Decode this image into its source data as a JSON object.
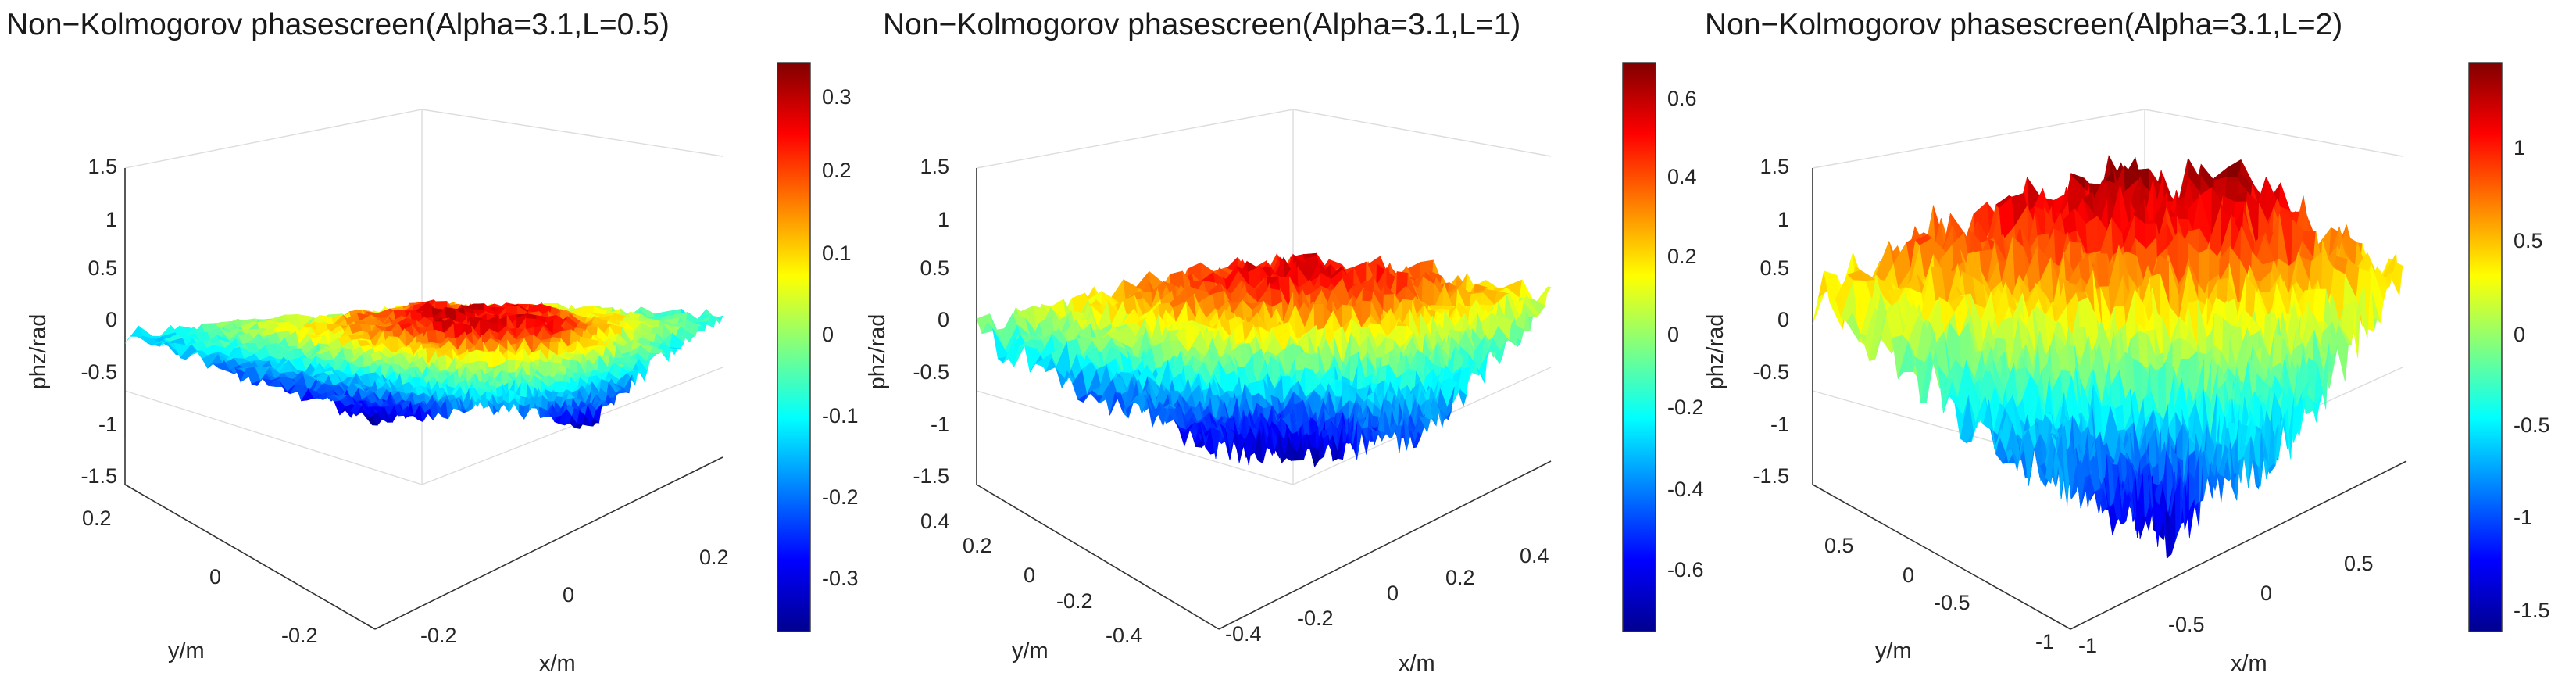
{
  "figure": {
    "colormap": "jet",
    "colors": {
      "jet": [
        "#00008f",
        "#0000ff",
        "#0080ff",
        "#00ffff",
        "#80ff80",
        "#ffff00",
        "#ff8000",
        "#ff0000",
        "#800000"
      ]
    },
    "charts": [
      {
        "title": "Non−Kolmogorov phasescreen(Alpha=3.1,L=0.5)",
        "xlabel": "x/m",
        "ylabel": "y/m",
        "zlabel": "phz/rad",
        "xticks": [
          "-0.2",
          "0",
          "0.2"
        ],
        "yticks": [
          "-0.2",
          "0",
          "0.2"
        ],
        "zticks": [
          "-1.5",
          "-1",
          "-0.5",
          "0",
          "0.5",
          "1",
          "1.5"
        ],
        "cbar_ticks": [
          "-0.3",
          "-0.2",
          "-0.1",
          "0",
          "0.1",
          "0.2",
          "0.3"
        ]
      },
      {
        "title": "Non−Kolmogorov phasescreen(Alpha=3.1,L=1)",
        "xlabel": "x/m",
        "ylabel": "y/m",
        "zlabel": "phz/rad",
        "xticks": [
          "-0.4",
          "-0.2",
          "0",
          "0.2",
          "0.4"
        ],
        "yticks": [
          "-0.4",
          "-0.2",
          "0",
          "0.2",
          "0.4"
        ],
        "zticks": [
          "-1.5",
          "-1",
          "-0.5",
          "0",
          "0.5",
          "1",
          "1.5"
        ],
        "cbar_ticks": [
          "-0.6",
          "-0.4",
          "-0.2",
          "0",
          "0.2",
          "0.4",
          "0.6"
        ]
      },
      {
        "title": "Non−Kolmogorov phasescreen(Alpha=3.1,L=2)",
        "xlabel": "x/m",
        "ylabel": "y/m",
        "zlabel": "phz/rad",
        "xticks": [
          "-1",
          "-0.5",
          "0",
          "0.5"
        ],
        "yticks": [
          "-1",
          "-0.5",
          "0",
          "0.5"
        ],
        "zticks": [
          "-1.5",
          "-1",
          "-0.5",
          "0",
          "0.5",
          "1",
          "1.5"
        ],
        "cbar_ticks": [
          "-1.5",
          "-1",
          "-0.5",
          "0",
          "0.5",
          "1"
        ]
      }
    ]
  },
  "chart_data": [
    {
      "type": "surface",
      "title": "Non−Kolmogorov phasescreen(Alpha=3.1,L=0.5)",
      "alpha": 3.1,
      "L": 0.5,
      "x_range": [
        -0.25,
        0.25
      ],
      "y_range": [
        -0.25,
        0.25
      ],
      "zlim": [
        -1.5,
        1.5
      ],
      "x_ticks": [
        -0.2,
        0,
        0.2
      ],
      "y_ticks": [
        -0.2,
        0,
        0.2
      ],
      "z_ticks": [
        -1.5,
        -1,
        -0.5,
        0,
        0.5,
        1,
        1.5
      ],
      "clim": [
        -0.35,
        0.35
      ],
      "cbar_ticks": [
        -0.3,
        -0.2,
        -0.1,
        0,
        0.1,
        0.2,
        0.3
      ],
      "xlabel": "x/m",
      "ylabel": "y/m",
      "zlabel": "phz/rad",
      "colormap": "jet",
      "grid": true,
      "surface_amplitude": 0.35,
      "surface_samples": [
        [
          -0.1,
          -0.02,
          0.05,
          0.0,
          -0.08
        ],
        [
          -0.15,
          0.1,
          0.28,
          0.2,
          -0.05
        ],
        [
          -0.2,
          0.05,
          0.3,
          0.25,
          -0.1
        ],
        [
          -0.25,
          -0.12,
          0.02,
          0.0,
          -0.18
        ],
        [
          -0.3,
          -0.25,
          -0.15,
          -0.2,
          -0.28
        ]
      ]
    },
    {
      "type": "surface",
      "title": "Non−Kolmogorov phasescreen(Alpha=3.1,L=1)",
      "alpha": 3.1,
      "L": 1,
      "x_range": [
        -0.5,
        0.5
      ],
      "y_range": [
        -0.5,
        0.5
      ],
      "zlim": [
        -1.5,
        1.5
      ],
      "x_ticks": [
        -0.4,
        -0.2,
        0,
        0.2,
        0.4
      ],
      "y_ticks": [
        -0.4,
        -0.2,
        0,
        0.2,
        0.4
      ],
      "z_ticks": [
        -1.5,
        -1,
        -0.5,
        0,
        0.5,
        1,
        1.5
      ],
      "clim": [
        -0.7,
        0.7
      ],
      "cbar_ticks": [
        -0.6,
        -0.4,
        -0.2,
        0,
        0.2,
        0.4,
        0.6
      ],
      "xlabel": "x/m",
      "ylabel": "y/m",
      "zlabel": "phz/rad",
      "colormap": "jet",
      "grid": true,
      "surface_amplitude": 0.7,
      "surface_samples": [
        [
          -0.1,
          0.3,
          0.5,
          0.4,
          0.1
        ],
        [
          -0.2,
          0.25,
          0.55,
          0.45,
          0.0
        ],
        [
          -0.35,
          0.05,
          0.2,
          0.15,
          -0.15
        ],
        [
          -0.45,
          -0.3,
          -0.4,
          -0.25,
          -0.3
        ],
        [
          -0.55,
          -0.6,
          -0.65,
          -0.45,
          -0.4
        ]
      ]
    },
    {
      "type": "surface",
      "title": "Non−Kolmogorov phasescreen(Alpha=3.1,L=2)",
      "alpha": 3.1,
      "L": 2,
      "x_range": [
        -1,
        1
      ],
      "y_range": [
        -1,
        1
      ],
      "zlim": [
        -1.5,
        1.5
      ],
      "x_ticks": [
        -1,
        -0.5,
        0,
        0.5
      ],
      "y_ticks": [
        -1,
        -0.5,
        0,
        0.5
      ],
      "z_ticks": [
        -1.5,
        -1,
        -0.5,
        0,
        0.5,
        1,
        1.5
      ],
      "clim": [
        -1.6,
        1.45
      ],
      "cbar_ticks": [
        -1.5,
        -1,
        -0.5,
        0,
        0.5,
        1
      ],
      "xlabel": "x/m",
      "ylabel": "y/m",
      "zlabel": "phz/rad",
      "colormap": "jet",
      "grid": true,
      "surface_amplitude": 1.4,
      "surface_samples": [
        [
          0.3,
          0.9,
          1.3,
          1.2,
          0.4
        ],
        [
          0.1,
          0.7,
          1.1,
          1.0,
          0.2
        ],
        [
          -0.3,
          0.1,
          0.3,
          0.2,
          -0.2
        ],
        [
          -0.7,
          -0.6,
          -0.9,
          -0.4,
          -0.5
        ],
        [
          -0.8,
          -1.1,
          -1.4,
          -0.9,
          -0.6
        ]
      ]
    }
  ]
}
